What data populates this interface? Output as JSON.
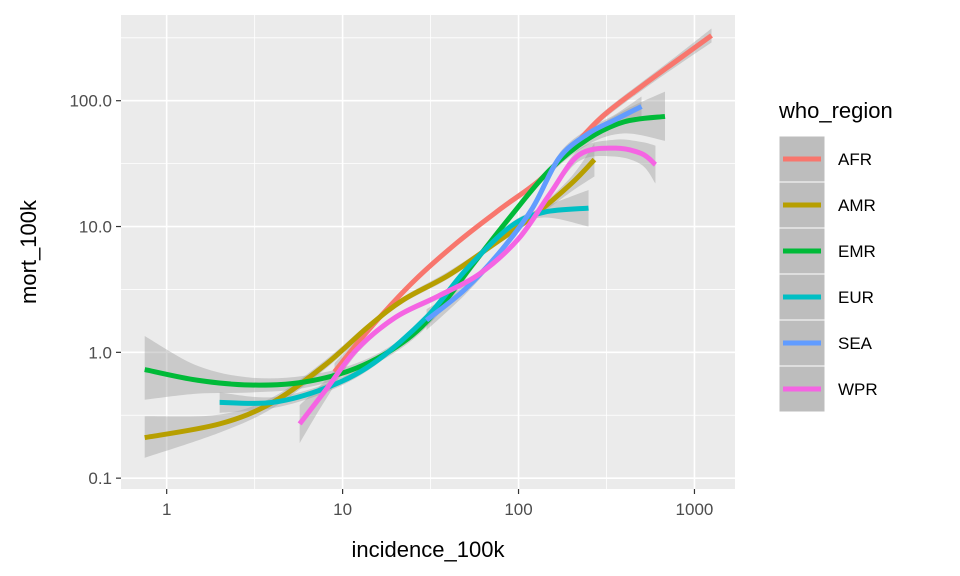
{
  "chart_data": {
    "type": "line",
    "xlabel": "incidence_100k",
    "ylabel": "mort_100k",
    "x_scale": "log10",
    "y_scale": "log10",
    "xlim": [
      0.55,
      1700
    ],
    "ylim": [
      0.082,
      480
    ],
    "x_ticks": [
      {
        "value": 1,
        "label": "1"
      },
      {
        "value": 10,
        "label": "10"
      },
      {
        "value": 100,
        "label": "100"
      },
      {
        "value": 1000,
        "label": "1000"
      }
    ],
    "y_ticks": [
      {
        "value": 0.1,
        "label": "0.1"
      },
      {
        "value": 1,
        "label": "1.0"
      },
      {
        "value": 10,
        "label": "10.0"
      },
      {
        "value": 100,
        "label": "100.0"
      }
    ],
    "grid": true,
    "background": "#ebebeb",
    "legend_title": "who_region",
    "legend_position": "right",
    "series": [
      {
        "name": "AFR",
        "color": "#F8766D",
        "x": [
          9,
          14,
          25,
          45,
          80,
          130,
          200,
          300,
          500,
          800,
          1250
        ],
        "y": [
          0.7,
          1.5,
          3.6,
          7.5,
          14,
          23,
          42,
          75,
          130,
          210,
          330
        ],
        "band_lo": [
          0.6,
          1.4,
          3.4,
          7.2,
          13.3,
          21.8,
          39.5,
          70,
          120,
          190,
          290
        ],
        "band_hi": [
          0.82,
          1.6,
          3.8,
          7.8,
          14.8,
          24.3,
          44.5,
          80,
          140,
          230,
          375
        ]
      },
      {
        "name": "AMR",
        "color": "#B79F00",
        "x": [
          0.75,
          2,
          4,
          8,
          14,
          22,
          40,
          70,
          120,
          200,
          270
        ],
        "y": [
          0.21,
          0.27,
          0.4,
          0.8,
          1.6,
          2.6,
          4.1,
          7,
          12,
          22,
          34
        ],
        "band_lo": [
          0.145,
          0.23,
          0.36,
          0.74,
          1.5,
          2.45,
          3.85,
          6.6,
          11.2,
          19,
          25
        ],
        "band_hi": [
          0.31,
          0.32,
          0.44,
          0.87,
          1.7,
          2.75,
          4.4,
          7.4,
          12.8,
          25,
          46
        ]
      },
      {
        "name": "EMR",
        "color": "#00BA38",
        "x": [
          0.75,
          1.5,
          3,
          6,
          12,
          22,
          35,
          55,
          90,
          150,
          250,
          400,
          680
        ],
        "y": [
          0.73,
          0.6,
          0.55,
          0.58,
          0.75,
          1.2,
          2.2,
          5,
          12,
          28,
          50,
          68,
          75
        ],
        "band_lo": [
          0.42,
          0.47,
          0.48,
          0.52,
          0.69,
          1.1,
          2.0,
          4.6,
          11.2,
          26,
          45,
          55,
          48
        ],
        "band_hi": [
          1.35,
          0.78,
          0.63,
          0.65,
          0.82,
          1.3,
          2.4,
          5.4,
          12.8,
          30,
          55,
          84,
          118
        ]
      },
      {
        "name": "EUR",
        "color": "#00BFC4",
        "x": [
          2,
          4,
          8,
          15,
          30,
          50,
          90,
          140,
          250
        ],
        "y": [
          0.4,
          0.4,
          0.52,
          0.82,
          1.9,
          4.5,
          10,
          13,
          14
        ],
        "band_lo": [
          0.33,
          0.36,
          0.48,
          0.77,
          1.78,
          4.2,
          9.4,
          11.8,
          10
        ],
        "band_hi": [
          0.48,
          0.44,
          0.56,
          0.87,
          2.02,
          4.8,
          10.6,
          14.3,
          19.5
        ]
      },
      {
        "name": "SEA",
        "color": "#619CFF",
        "x": [
          30,
          50,
          80,
          120,
          170,
          250,
          350,
          500
        ],
        "y": [
          1.8,
          3.2,
          6.5,
          14,
          35,
          55,
          70,
          90
        ],
        "band_lo": [
          1.5,
          2.9,
          6.1,
          13,
          32,
          50,
          64,
          75
        ],
        "band_hi": [
          2.2,
          3.5,
          6.9,
          15,
          38,
          60,
          77,
          108
        ]
      },
      {
        "name": "WPR",
        "color": "#F564E3",
        "x": [
          5.7,
          8,
          12,
          20,
          35,
          60,
          100,
          150,
          220,
          350,
          500,
          600
        ],
        "y": [
          0.27,
          0.5,
          1.05,
          1.9,
          2.8,
          4.2,
          8,
          18,
          37,
          42,
          38,
          31
        ],
        "band_lo": [
          0.19,
          0.42,
          0.97,
          1.8,
          2.65,
          4.0,
          7.6,
          17,
          33,
          36,
          31,
          22
        ],
        "band_hi": [
          0.38,
          0.6,
          1.13,
          2.0,
          2.95,
          4.4,
          8.4,
          19,
          41,
          49,
          47,
          44
        ]
      }
    ]
  }
}
